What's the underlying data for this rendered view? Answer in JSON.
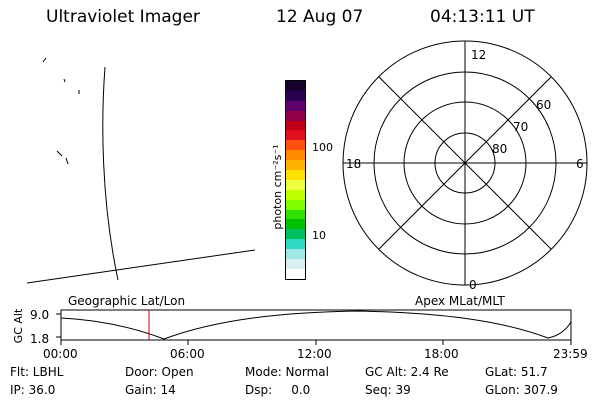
{
  "header": {
    "title": "Ultraviolet Imager",
    "date": "12 Aug 07",
    "time": "04:13:11 UT"
  },
  "colorbar": {
    "label": "photon cm⁻²s⁻¹",
    "ticks": [
      "100",
      "10"
    ],
    "colors": [
      "#1a0030",
      "#2a0050",
      "#60006a",
      "#90004a",
      "#c00018",
      "#e01020",
      "#ff5010",
      "#ff8c00",
      "#ffb000",
      "#ffe000",
      "#f0ff40",
      "#c0ff00",
      "#80ff00",
      "#30e000",
      "#00c000",
      "#00c060",
      "#30d8c8",
      "#a0e8e8",
      "#d8f0f0",
      "#ffffff"
    ]
  },
  "polar": {
    "labels": {
      "top": "12",
      "left": "18",
      "right": "6",
      "bottom": "0"
    },
    "rings": [
      "60",
      "70",
      "80"
    ]
  },
  "timeline": {
    "ylabel": "GC Alt",
    "yticks": [
      "9.0",
      "1.8"
    ],
    "left_title": "Geographic Lat/Lon",
    "right_title": "Apex MLat/MLT",
    "xticks": [
      "00:00",
      "06:00",
      "12:00",
      "18:00",
      "23:59"
    ]
  },
  "status": {
    "row1": [
      "Flt: LBHL",
      "Door: Open",
      "Mode: Normal",
      "GC Alt: 2.4 Re",
      "GLat: 51.7"
    ],
    "row2": [
      "IP: 36.0",
      "Gain: 14",
      "Dsp:     0.0",
      "Seq: 39",
      "GLon: 307.9"
    ]
  }
}
